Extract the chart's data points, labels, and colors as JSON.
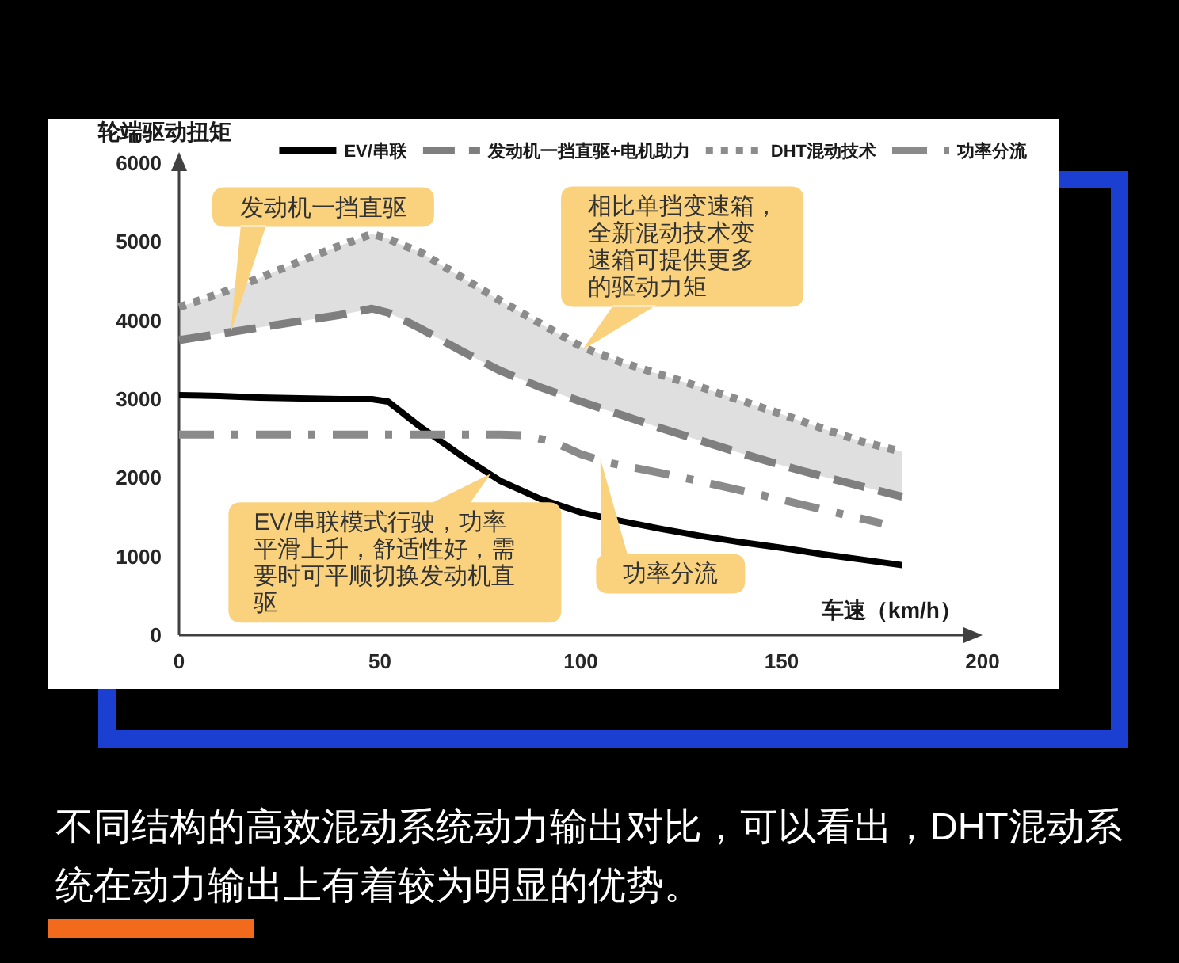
{
  "chart_data": {
    "type": "line",
    "xlabel": "车速（km/h）",
    "ylabel": "轮端驱动扭矩",
    "x": [
      0,
      10,
      20,
      30,
      40,
      48,
      52,
      55,
      60,
      70,
      80,
      90,
      100,
      110,
      120,
      130,
      140,
      150,
      160,
      170,
      180
    ],
    "xlim": [
      0,
      200
    ],
    "xticks": [
      0,
      50,
      100,
      150,
      200
    ],
    "ylim": [
      0,
      6000
    ],
    "yticks": [
      0,
      1000,
      2000,
      3000,
      4000,
      5000,
      6000
    ],
    "legend": "top",
    "series": [
      {
        "name": "EV/串联",
        "color": "#000000",
        "line_style": "solid",
        "values": [
          3050,
          3040,
          3020,
          3010,
          3000,
          3000,
          2970,
          2850,
          2650,
          2290,
          1960,
          1730,
          1560,
          1450,
          1350,
          1260,
          1180,
          1110,
          1030,
          960,
          890
        ]
      },
      {
        "name": "发动机一挡直驱+电机助力",
        "color": "#7f7f7f",
        "line_style": "dashed",
        "values": [
          3750,
          3830,
          3910,
          3990,
          4070,
          4150,
          4100,
          4030,
          3900,
          3620,
          3360,
          3150,
          2970,
          2800,
          2630,
          2470,
          2310,
          2160,
          2020,
          1890,
          1760
        ]
      },
      {
        "name": "DHT混动技术",
        "color": "#8c8c8c",
        "line_style": "dotted",
        "values": [
          4170,
          4340,
          4540,
          4750,
          4950,
          5100,
          5040,
          4970,
          4870,
          4560,
          4250,
          3960,
          3670,
          3470,
          3310,
          3150,
          2980,
          2810,
          2630,
          2460,
          2330
        ],
        "lower": [
          3750,
          3830,
          3910,
          3990,
          4070,
          4150,
          4100,
          4030,
          3900,
          3620,
          3360,
          3150,
          2970,
          2800,
          2630,
          2470,
          2310,
          2160,
          2020,
          1890,
          1760
        ],
        "upper": [
          4170,
          4340,
          4540,
          4750,
          4950,
          5100,
          5040,
          4970,
          4870,
          4560,
          4250,
          3960,
          3670,
          3470,
          3310,
          3150,
          2980,
          2810,
          2630,
          2460,
          2330
        ]
      },
      {
        "name": "功率分流",
        "color": "#8a8a8a",
        "line_style": "dashdot",
        "x": [
          0,
          20,
          40,
          60,
          80,
          86,
          93,
          100,
          107,
          120,
          132,
          145,
          160,
          175
        ],
        "values": [
          2550,
          2550,
          2550,
          2550,
          2550,
          2540,
          2460,
          2300,
          2190,
          2060,
          1930,
          1780,
          1600,
          1420
        ]
      }
    ],
    "annotations": [
      {
        "text": "发动机一挡直驱",
        "x": 13,
        "y": 3880
      },
      {
        "text": "相比单挡变速箱，全新混动技术变速箱可提供更多的驱动力矩",
        "x": 101,
        "y": 3650
      },
      {
        "text": "EV/串联模式行驶，功率平滑上升，舒适性好，需要时可平顺切换发动机直驱",
        "x": 77,
        "y": 2030
      },
      {
        "text": "功率分流",
        "x": 105,
        "y": 2200
      },
      "不同结构的高效混动系统动力输出对比，可以看出，DHT混动系统在动力输出上有着较为明显的优势。"
    ]
  }
}
